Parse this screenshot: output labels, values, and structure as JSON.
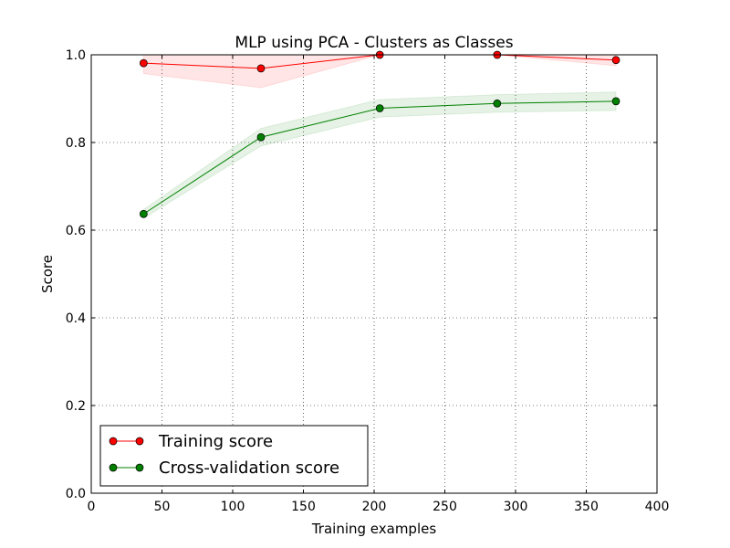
{
  "chart_data": {
    "type": "line",
    "title": "MLP using PCA - Clusters as Classes",
    "xlabel": "Training examples",
    "ylabel": "Score",
    "xlim": [
      0,
      400
    ],
    "ylim": [
      0.0,
      1.0
    ],
    "xticks": [
      "0",
      "50",
      "100",
      "150",
      "200",
      "250",
      "300",
      "350",
      "400"
    ],
    "yticks": [
      "0.0",
      "0.2",
      "0.4",
      "0.6",
      "0.8",
      "1.0"
    ],
    "grid": true,
    "legend_position": "lower-left",
    "x": [
      37,
      120,
      204,
      287,
      371
    ],
    "series": [
      {
        "name": "Training score",
        "color": "#ff0000",
        "values": [
          0.981,
          0.969,
          1.0,
          1.0,
          0.988
        ],
        "band_lower": [
          0.957,
          0.925,
          1.0,
          1.0,
          0.975
        ],
        "band_upper": [
          1.0,
          1.0,
          1.0,
          1.0,
          1.0
        ]
      },
      {
        "name": "Cross-validation score",
        "color": "#008000",
        "values": [
          0.637,
          0.812,
          0.878,
          0.889,
          0.894
        ],
        "band_lower": [
          0.627,
          0.792,
          0.858,
          0.869,
          0.873
        ],
        "band_upper": [
          0.647,
          0.832,
          0.898,
          0.909,
          0.915
        ]
      }
    ]
  }
}
